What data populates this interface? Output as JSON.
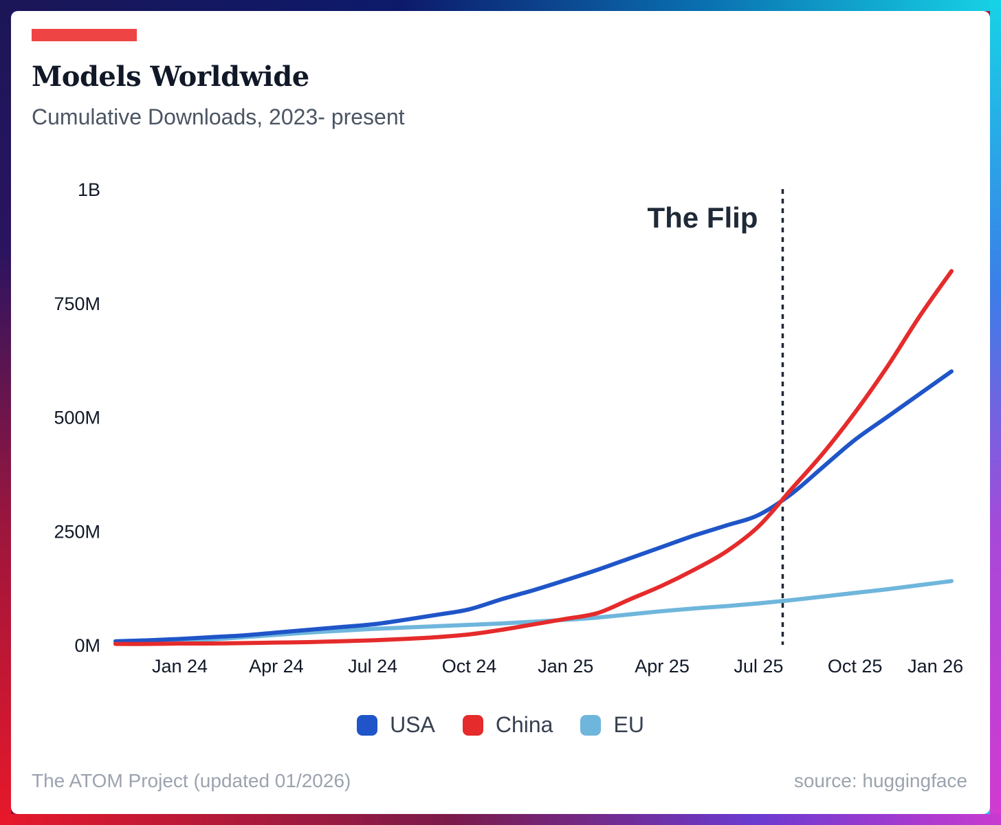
{
  "header": {
    "title": "Models Worldwide",
    "subtitle": "Cumulative Downloads, 2023- present",
    "accent_color": "#ef4444"
  },
  "chart_data": {
    "type": "line",
    "title": "Models Worldwide",
    "subtitle": "Cumulative Downloads, 2023- present",
    "xlabel": "",
    "ylabel": "",
    "x_unit": "month index (0 = Nov 2023)",
    "xlim": [
      0,
      26
    ],
    "ylim": [
      0,
      1000
    ],
    "y_unit": "millions",
    "y_ticks": [
      {
        "value": 0,
        "label": "0M"
      },
      {
        "value": 250,
        "label": "250M"
      },
      {
        "value": 500,
        "label": "500M"
      },
      {
        "value": 750,
        "label": "750M"
      },
      {
        "value": 1000,
        "label": "1B"
      }
    ],
    "x_ticks": [
      {
        "value": 2,
        "label": "Jan 24"
      },
      {
        "value": 5,
        "label": "Apr 24"
      },
      {
        "value": 8,
        "label": "Jul 24"
      },
      {
        "value": 11,
        "label": "Oct 24"
      },
      {
        "value": 14,
        "label": "Jan 25"
      },
      {
        "value": 17,
        "label": "Apr 25"
      },
      {
        "value": 20,
        "label": "Jul 25"
      },
      {
        "value": 23,
        "label": "Oct 25"
      },
      {
        "value": 25.5,
        "label": "Jan 26"
      }
    ],
    "series": [
      {
        "name": "USA",
        "color": "#1f55c8",
        "x": [
          0,
          1,
          2,
          3,
          4,
          5,
          6,
          7,
          8,
          9,
          10,
          11,
          12,
          13,
          14,
          15,
          16,
          17,
          18,
          19,
          20,
          21,
          22,
          23,
          24,
          25,
          26
        ],
        "values": [
          8,
          10,
          13,
          17,
          21,
          27,
          33,
          39,
          45,
          55,
          66,
          78,
          100,
          120,
          142,
          165,
          190,
          215,
          240,
          262,
          285,
          330,
          390,
          450,
          500,
          550,
          600
        ]
      },
      {
        "name": "China",
        "color": "#e52b2b",
        "x": [
          0,
          1,
          2,
          3,
          4,
          5,
          6,
          7,
          8,
          9,
          10,
          11,
          12,
          13,
          14,
          15,
          16,
          17,
          18,
          19,
          20,
          21,
          22,
          23,
          24,
          25,
          26
        ],
        "values": [
          2,
          2,
          3,
          3,
          4,
          5,
          6,
          8,
          10,
          13,
          17,
          23,
          33,
          45,
          57,
          70,
          100,
          130,
          165,
          205,
          260,
          340,
          420,
          510,
          610,
          720,
          820
        ]
      },
      {
        "name": "EU",
        "color": "#6fb6dc",
        "x": [
          0,
          1,
          2,
          3,
          4,
          5,
          6,
          7,
          8,
          9,
          10,
          11,
          12,
          13,
          14,
          15,
          16,
          17,
          18,
          19,
          20,
          21,
          22,
          23,
          24,
          25,
          26
        ],
        "values": [
          3,
          5,
          8,
          12,
          17,
          22,
          27,
          31,
          35,
          38,
          41,
          44,
          47,
          51,
          55,
          60,
          67,
          74,
          80,
          85,
          91,
          98,
          106,
          114,
          122,
          131,
          140
        ]
      }
    ],
    "annotations": [
      {
        "type": "vline",
        "x": 20.75,
        "text": "The Flip",
        "style": "dotted"
      }
    ],
    "legend": {
      "position": "bottom-center"
    },
    "grid": false
  },
  "footer": {
    "left": "The ATOM Project (updated 01/2026)",
    "right": "source: huggingface"
  }
}
